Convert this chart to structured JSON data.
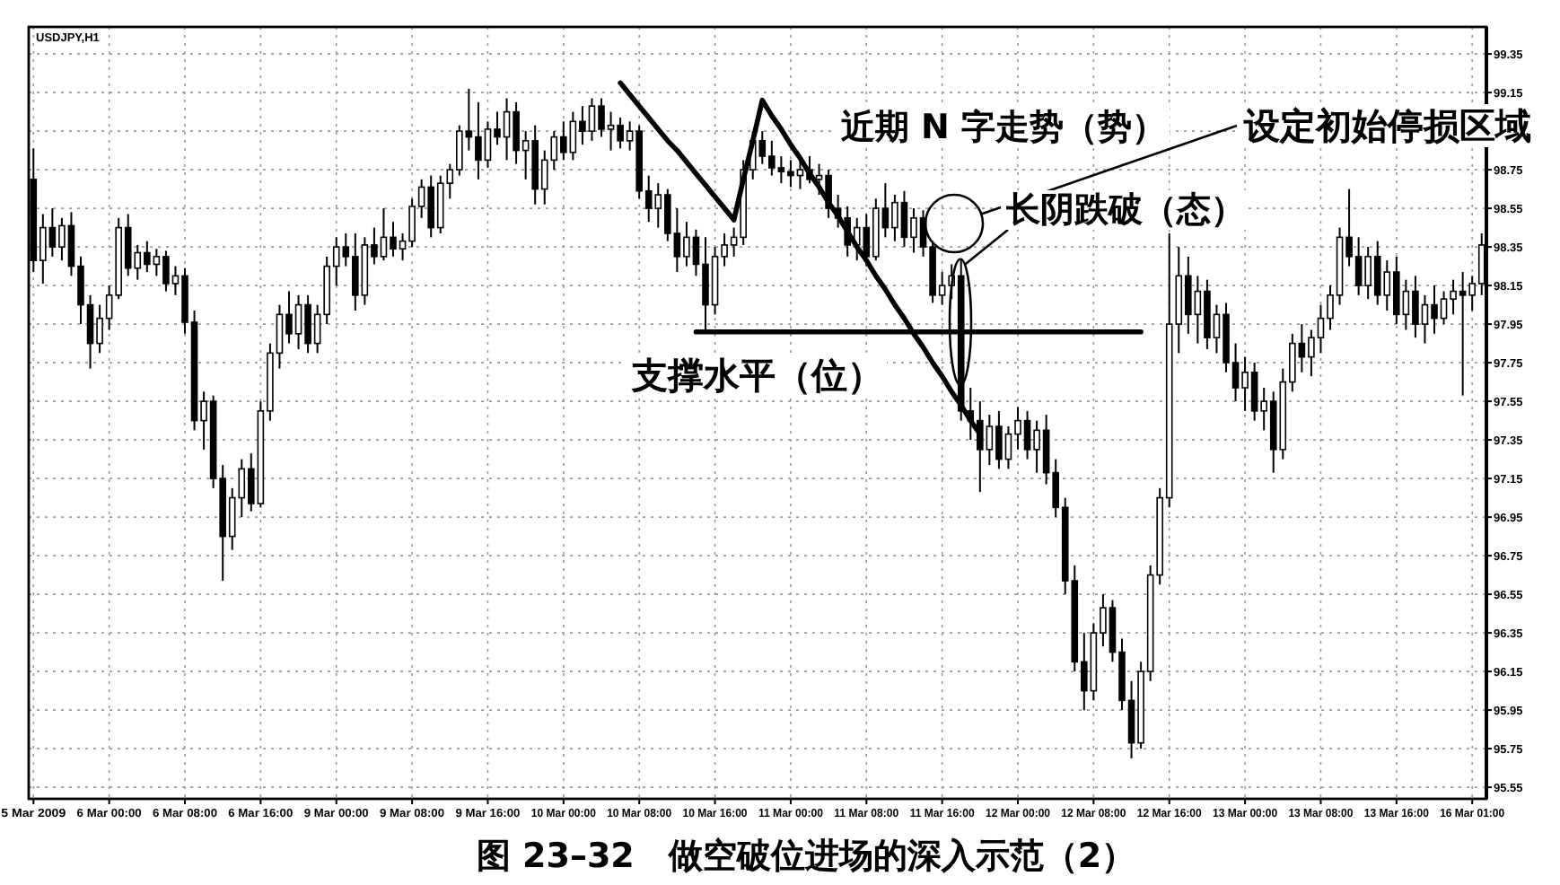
{
  "chart_data": {
    "type": "candlestick",
    "title": "图 23–32　做空破位进场的深入示范（2）",
    "subtitle": "USDJPY,H1",
    "color": "#000000",
    "categories": [
      "5 Mar 2009",
      null,
      null,
      null,
      null,
      null,
      null,
      null,
      "6 Mar 00:00",
      null,
      null,
      null,
      null,
      null,
      null,
      null,
      "6 Mar 08:00",
      null,
      null,
      null,
      null,
      null,
      null,
      null,
      "6 Mar 16:00",
      null,
      null,
      null,
      null,
      null,
      null,
      null,
      "9 Mar 00:00",
      null,
      null,
      null,
      null,
      null,
      null,
      null,
      "9 Mar 08:00",
      null,
      null,
      null,
      null,
      null,
      null,
      null,
      "9 Mar 16:00",
      null,
      null,
      null,
      null,
      null,
      null,
      null,
      "10 Mar 00:00",
      null,
      null,
      null,
      null,
      null,
      null,
      null,
      "10 Mar 08:00",
      null,
      null,
      null,
      null,
      null,
      null,
      null,
      "10 Mar 16:00",
      null,
      null,
      null,
      null,
      null,
      null,
      null,
      "11 Mar 00:00",
      null,
      null,
      null,
      null,
      null,
      null,
      null,
      "11 Mar 08:00",
      null,
      null,
      null,
      null,
      null,
      null,
      null,
      "11 Mar 16:00",
      null,
      null,
      null,
      null,
      null,
      null,
      null,
      "12 Mar 00:00",
      null,
      null,
      null,
      null,
      null,
      null,
      null,
      "12 Mar 08:00",
      null,
      null,
      null,
      null,
      null,
      null,
      null,
      "12 Mar 16:00",
      null,
      null,
      null,
      null,
      null,
      null,
      null,
      "13 Mar 00:00",
      null,
      null,
      null,
      null,
      null,
      null,
      null,
      "13 Mar 08:00",
      null,
      null,
      null,
      null,
      null,
      null,
      null,
      "13 Mar 16:00",
      null,
      null,
      null,
      null,
      null,
      null,
      null,
      "16 Mar 01:00",
      null
    ],
    "ohlc": [
      [
        98.7,
        98.86,
        98.22,
        98.28
      ],
      [
        98.28,
        98.52,
        98.16,
        98.45
      ],
      [
        98.45,
        98.55,
        98.3,
        98.35
      ],
      [
        98.35,
        98.5,
        98.28,
        98.46
      ],
      [
        98.46,
        98.53,
        98.2,
        98.25
      ],
      [
        98.25,
        98.3,
        97.95,
        98.05
      ],
      [
        98.05,
        98.1,
        97.72,
        97.85
      ],
      [
        97.85,
        98.05,
        97.8,
        97.98
      ],
      [
        97.98,
        98.15,
        97.92,
        98.1
      ],
      [
        98.1,
        98.5,
        98.08,
        98.45
      ],
      [
        98.45,
        98.52,
        98.2,
        98.24
      ],
      [
        98.24,
        98.36,
        98.18,
        98.32
      ],
      [
        98.32,
        98.38,
        98.22,
        98.26
      ],
      [
        98.26,
        98.34,
        98.2,
        98.3
      ],
      [
        98.3,
        98.33,
        98.12,
        98.16
      ],
      [
        98.16,
        98.25,
        98.1,
        98.2
      ],
      [
        98.2,
        98.24,
        97.9,
        97.96
      ],
      [
        97.96,
        98.02,
        97.4,
        97.45
      ],
      [
        97.45,
        97.6,
        97.3,
        97.55
      ],
      [
        97.55,
        97.58,
        97.1,
        97.15
      ],
      [
        97.15,
        97.22,
        96.62,
        96.85
      ],
      [
        96.85,
        97.1,
        96.78,
        97.05
      ],
      [
        97.05,
        97.25,
        96.95,
        97.2
      ],
      [
        97.2,
        97.28,
        96.98,
        97.02
      ],
      [
        97.02,
        97.55,
        97.0,
        97.5
      ],
      [
        97.5,
        97.85,
        97.45,
        97.8
      ],
      [
        97.8,
        98.05,
        97.72,
        98.0
      ],
      [
        98.0,
        98.12,
        97.85,
        97.9
      ],
      [
        97.9,
        98.1,
        97.82,
        98.05
      ],
      [
        98.05,
        98.1,
        97.8,
        97.85
      ],
      [
        97.85,
        98.05,
        97.8,
        98.0
      ],
      [
        98.0,
        98.3,
        97.95,
        98.25
      ],
      [
        98.25,
        98.4,
        98.15,
        98.35
      ],
      [
        98.35,
        98.42,
        98.25,
        98.3
      ],
      [
        98.3,
        98.42,
        98.02,
        98.1
      ],
      [
        98.1,
        98.4,
        98.05,
        98.36
      ],
      [
        98.36,
        98.45,
        98.26,
        98.3
      ],
      [
        98.3,
        98.55,
        98.28,
        98.4
      ],
      [
        98.4,
        98.48,
        98.3,
        98.34
      ],
      [
        98.34,
        98.42,
        98.28,
        98.38
      ],
      [
        98.38,
        98.6,
        98.35,
        98.56
      ],
      [
        98.56,
        98.7,
        98.5,
        98.66
      ],
      [
        98.66,
        98.72,
        98.4,
        98.45
      ],
      [
        98.45,
        98.72,
        98.42,
        98.68
      ],
      [
        98.68,
        98.78,
        98.6,
        98.75
      ],
      [
        98.75,
        98.98,
        98.72,
        98.95
      ],
      [
        98.95,
        99.17,
        98.85,
        98.92
      ],
      [
        98.92,
        99.1,
        98.7,
        98.8
      ],
      [
        98.8,
        99.0,
        98.76,
        98.96
      ],
      [
        98.96,
        99.05,
        98.88,
        98.92
      ],
      [
        98.92,
        99.12,
        98.8,
        99.05
      ],
      [
        99.05,
        99.1,
        98.78,
        98.85
      ],
      [
        98.85,
        98.95,
        98.7,
        98.9
      ],
      [
        98.9,
        98.98,
        98.57,
        98.65
      ],
      [
        98.65,
        98.85,
        98.57,
        98.8
      ],
      [
        98.8,
        98.95,
        98.75,
        98.92
      ],
      [
        98.92,
        99.0,
        98.8,
        98.84
      ],
      [
        98.84,
        99.05,
        98.8,
        99.0
      ],
      [
        99.0,
        99.08,
        98.88,
        98.95
      ],
      [
        98.95,
        99.12,
        98.9,
        99.08
      ],
      [
        99.08,
        99.12,
        98.92,
        98.96
      ],
      [
        98.96,
        99.05,
        98.85,
        98.98
      ],
      [
        98.98,
        99.02,
        98.86,
        98.9
      ],
      [
        98.9,
        99.0,
        98.85,
        98.95
      ],
      [
        98.95,
        98.98,
        98.6,
        98.64
      ],
      [
        98.64,
        98.72,
        98.48,
        98.55
      ],
      [
        98.55,
        98.68,
        98.45,
        98.62
      ],
      [
        98.62,
        98.65,
        98.38,
        98.42
      ],
      [
        98.42,
        98.55,
        98.22,
        98.3
      ],
      [
        98.3,
        98.48,
        98.25,
        98.4
      ],
      [
        98.4,
        98.44,
        98.2,
        98.26
      ],
      [
        98.26,
        98.4,
        97.91,
        98.05
      ],
      [
        98.05,
        98.35,
        98.0,
        98.3
      ],
      [
        98.3,
        98.42,
        98.25,
        98.36
      ],
      [
        98.36,
        98.45,
        98.3,
        98.4
      ],
      [
        98.4,
        98.8,
        98.36,
        98.75
      ],
      [
        98.75,
        98.95,
        98.7,
        98.9
      ],
      [
        98.9,
        98.95,
        98.78,
        98.82
      ],
      [
        98.82,
        98.9,
        98.72,
        98.76
      ],
      [
        98.76,
        98.82,
        98.68,
        98.74
      ],
      [
        98.74,
        98.8,
        98.66,
        98.72
      ],
      [
        98.72,
        98.8,
        98.65,
        98.75
      ],
      [
        98.75,
        98.82,
        98.68,
        98.7
      ],
      [
        98.7,
        98.78,
        98.62,
        98.72
      ],
      [
        98.72,
        98.75,
        98.5,
        98.55
      ],
      [
        98.55,
        98.62,
        98.45,
        98.5
      ],
      [
        98.5,
        98.56,
        98.3,
        98.36
      ],
      [
        98.36,
        98.5,
        98.28,
        98.45
      ],
      [
        98.45,
        98.52,
        98.25,
        98.3
      ],
      [
        98.3,
        98.6,
        98.28,
        98.55
      ],
      [
        98.55,
        98.68,
        98.4,
        98.45
      ],
      [
        98.45,
        98.62,
        98.38,
        98.58
      ],
      [
        98.58,
        98.64,
        98.35,
        98.4
      ],
      [
        98.4,
        98.55,
        98.32,
        98.5
      ],
      [
        98.5,
        98.54,
        98.3,
        98.35
      ],
      [
        98.35,
        98.38,
        98.06,
        98.1
      ],
      [
        98.1,
        98.22,
        98.05,
        98.15
      ],
      [
        98.15,
        98.26,
        98.08,
        98.2
      ],
      [
        98.2,
        98.28,
        97.45,
        97.5
      ],
      [
        97.5,
        97.62,
        97.35,
        97.45
      ],
      [
        97.45,
        97.55,
        97.08,
        97.3
      ],
      [
        97.3,
        97.48,
        97.22,
        97.42
      ],
      [
        97.42,
        97.5,
        97.2,
        97.25
      ],
      [
        97.25,
        97.42,
        97.2,
        97.38
      ],
      [
        97.38,
        97.52,
        97.3,
        97.45
      ],
      [
        97.45,
        97.5,
        97.25,
        97.3
      ],
      [
        97.3,
        97.45,
        97.18,
        97.4
      ],
      [
        97.4,
        97.48,
        97.12,
        97.18
      ],
      [
        97.18,
        97.25,
        96.95,
        97.0
      ],
      [
        97.0,
        97.05,
        96.55,
        96.62
      ],
      [
        96.62,
        96.7,
        96.15,
        96.2
      ],
      [
        96.2,
        96.35,
        95.95,
        96.05
      ],
      [
        96.05,
        96.4,
        96.0,
        96.35
      ],
      [
        96.35,
        96.55,
        96.28,
        96.48
      ],
      [
        96.48,
        96.52,
        96.2,
        96.25
      ],
      [
        96.25,
        96.32,
        95.95,
        96.0
      ],
      [
        96.0,
        96.1,
        95.7,
        95.78
      ],
      [
        95.78,
        96.2,
        95.75,
        96.15
      ],
      [
        96.15,
        96.7,
        96.1,
        96.65
      ],
      [
        96.65,
        97.1,
        96.6,
        97.05
      ],
      [
        97.05,
        98.42,
        97.0,
        97.95
      ],
      [
        97.95,
        98.35,
        97.8,
        98.2
      ],
      [
        98.2,
        98.3,
        97.9,
        98.0
      ],
      [
        98.0,
        98.2,
        97.85,
        98.12
      ],
      [
        98.12,
        98.18,
        97.82,
        97.88
      ],
      [
        97.88,
        98.05,
        97.8,
        98.0
      ],
      [
        98.0,
        98.06,
        97.7,
        97.75
      ],
      [
        97.75,
        97.85,
        97.55,
        97.62
      ],
      [
        97.62,
        97.78,
        97.5,
        97.7
      ],
      [
        97.7,
        97.75,
        97.45,
        97.5
      ],
      [
        97.5,
        97.62,
        97.4,
        97.55
      ],
      [
        97.55,
        97.6,
        97.18,
        97.3
      ],
      [
        97.3,
        97.72,
        97.25,
        97.65
      ],
      [
        97.65,
        97.9,
        97.6,
        97.85
      ],
      [
        97.85,
        97.95,
        97.7,
        97.78
      ],
      [
        97.78,
        97.92,
        97.68,
        97.88
      ],
      [
        97.88,
        98.05,
        97.8,
        97.98
      ],
      [
        97.98,
        98.15,
        97.92,
        98.1
      ],
      [
        98.1,
        98.45,
        98.05,
        98.4
      ],
      [
        98.4,
        98.65,
        98.25,
        98.3
      ],
      [
        98.3,
        98.4,
        98.1,
        98.15
      ],
      [
        98.15,
        98.35,
        98.08,
        98.3
      ],
      [
        98.3,
        98.38,
        98.05,
        98.1
      ],
      [
        98.1,
        98.28,
        98.02,
        98.22
      ],
      [
        98.22,
        98.3,
        97.95,
        98.0
      ],
      [
        98.0,
        98.18,
        97.92,
        98.12
      ],
      [
        98.12,
        98.2,
        97.88,
        97.95
      ],
      [
        97.95,
        98.1,
        97.85,
        98.05
      ],
      [
        98.05,
        98.15,
        97.9,
        97.98
      ],
      [
        97.98,
        98.12,
        97.95,
        98.08
      ],
      [
        98.08,
        98.18,
        98.0,
        98.12
      ],
      [
        98.12,
        98.22,
        97.58,
        98.1
      ],
      [
        98.1,
        98.2,
        98.02,
        98.16
      ],
      [
        98.16,
        98.42,
        98.1,
        98.36
      ]
    ],
    "series": [
      {
        "type": "line",
        "color": "#000000",
        "values": [
          null,
          null,
          null,
          null,
          null,
          null,
          null,
          null,
          null,
          null,
          null,
          null,
          null,
          null,
          null,
          null,
          null,
          null,
          null,
          null,
          null,
          null,
          null,
          null,
          null,
          null,
          null,
          null,
          null,
          null,
          null,
          null,
          null,
          null,
          null,
          null,
          null,
          null,
          null,
          null,
          null,
          null,
          null,
          null,
          null,
          null,
          null,
          null,
          null,
          null,
          null,
          null,
          null,
          null,
          null,
          null,
          null,
          null,
          null,
          null,
          null,
          null,
          99.2,
          99.14,
          99.08,
          99.02,
          98.96,
          98.9,
          98.85,
          98.79,
          98.73,
          98.67,
          98.61,
          98.55,
          98.49,
          98.7,
          98.9,
          99.11,
          99.03,
          98.96,
          98.88,
          98.81,
          98.73,
          98.66,
          98.58,
          98.51,
          98.43,
          98.35,
          98.28,
          98.2,
          98.13,
          98.05,
          97.98,
          97.9,
          97.83,
          97.75,
          97.68,
          97.6,
          97.53,
          97.45,
          97.38,
          null,
          null,
          null,
          null,
          null,
          null,
          null,
          null,
          null,
          null,
          null,
          null,
          null,
          null,
          null,
          null,
          null,
          null,
          null,
          null,
          null,
          null,
          null,
          null,
          null,
          null,
          null,
          null,
          null,
          null,
          null,
          null,
          null,
          null,
          null,
          null,
          null,
          null,
          null,
          null,
          null,
          null,
          null,
          null,
          null,
          null,
          null,
          null,
          null,
          null,
          null,
          null,
          null
        ]
      },
      {
        "type": "line",
        "color": "#000000",
        "values": [
          null,
          null,
          null,
          null,
          null,
          null,
          null,
          null,
          null,
          null,
          null,
          null,
          null,
          null,
          null,
          null,
          null,
          null,
          null,
          null,
          null,
          null,
          null,
          null,
          null,
          null,
          null,
          null,
          null,
          null,
          null,
          null,
          null,
          null,
          null,
          null,
          null,
          null,
          null,
          null,
          null,
          null,
          null,
          null,
          null,
          null,
          null,
          null,
          null,
          null,
          null,
          null,
          null,
          null,
          null,
          null,
          null,
          null,
          null,
          null,
          null,
          null,
          null,
          null,
          null,
          null,
          null,
          null,
          null,
          null,
          97.91,
          97.91,
          97.91,
          97.91,
          97.91,
          97.91,
          97.91,
          97.91,
          97.91,
          97.91,
          97.91,
          97.91,
          97.91,
          97.91,
          97.91,
          97.91,
          97.91,
          97.91,
          97.91,
          97.91,
          97.91,
          97.91,
          97.91,
          97.91,
          97.91,
          97.91,
          97.91,
          97.91,
          97.91,
          97.91,
          97.91,
          97.91,
          97.91,
          97.91,
          97.91,
          97.91,
          97.91,
          97.91,
          97.91,
          97.91,
          97.91,
          97.91,
          97.91,
          97.91,
          97.91,
          97.91,
          97.91,
          97.91,
          null,
          null,
          null,
          null,
          null,
          null,
          null,
          null,
          null,
          null,
          null,
          null,
          null,
          null,
          null,
          null,
          null,
          null,
          null,
          null,
          null,
          null,
          null,
          null,
          null,
          null,
          null,
          null,
          null,
          null,
          null,
          null,
          null,
          null,
          null,
          null
        ]
      }
    ],
    "annotations": [
      "近期 N 字走势（势）",
      "设定初始停损区域",
      {
        "text": "长阴跌破（态）",
        "y": 97.91
      },
      "支撑水平（位）"
    ],
    "ylim": [
      95.49,
      99.49
    ],
    "yticks": [
      95.55,
      95.75,
      95.95,
      96.15,
      96.35,
      96.55,
      96.75,
      96.95,
      97.15,
      97.35,
      97.55,
      97.75,
      97.95,
      98.15,
      98.35,
      98.55,
      98.75,
      {
        "value": 98.95,
        "label": null
      },
      99.15,
      99.35
    ],
    "grid": true
  }
}
